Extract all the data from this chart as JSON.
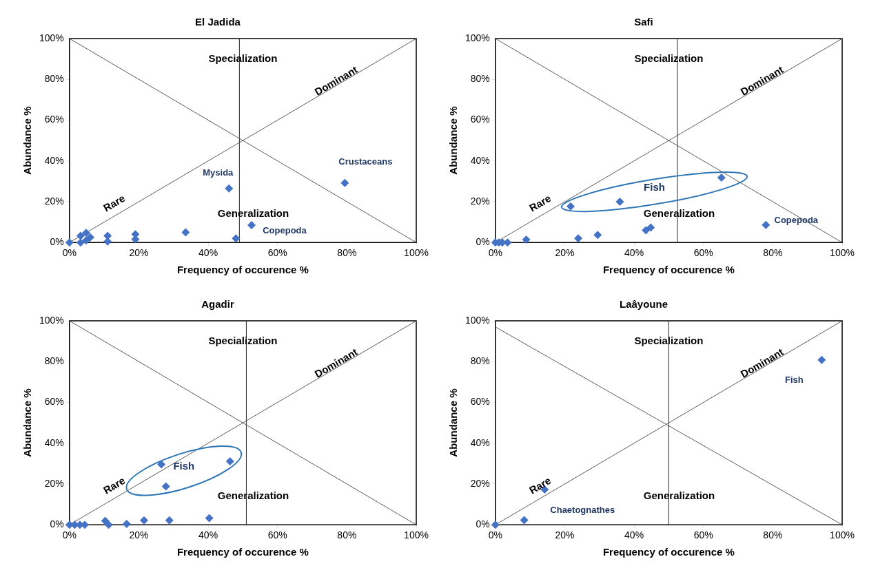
{
  "chart_data": [
    {
      "type": "scatter",
      "title": "El Jadida",
      "xlabel": "Frequency of occurence %",
      "ylabel": "Abundance %",
      "xlim": [
        0,
        100
      ],
      "ylim": [
        0,
        100
      ],
      "marker": "diamond",
      "xticks": [
        {
          "value": 0,
          "label": "0%"
        },
        {
          "value": 20,
          "label": "20%"
        },
        {
          "value": 40,
          "label": "40%"
        },
        {
          "value": 60,
          "label": "60%"
        },
        {
          "value": 80,
          "label": "80%"
        },
        {
          "value": 100,
          "label": "100%"
        }
      ],
      "yticks": [
        {
          "value": 0,
          "label": "0%"
        },
        {
          "value": 20,
          "label": "20%"
        },
        {
          "value": 40,
          "label": "40%"
        },
        {
          "value": 60,
          "label": "60%"
        },
        {
          "value": 80,
          "label": "80%"
        },
        {
          "value": 100,
          "label": "100%"
        }
      ],
      "grid": false,
      "legend": false,
      "series": [
        {
          "type": "scatter",
          "color": "#4472c4",
          "x": [
            0,
            3.2,
            3.2,
            4.8,
            4.8,
            6,
            11,
            11,
            19,
            19,
            33.5,
            48,
            52.5,
            46,
            79.4
          ],
          "values": [
            0,
            3.3,
            0,
            4.7,
            1,
            2.5,
            3.3,
            0.5,
            4,
            1.6,
            5,
            2,
            8.5,
            26.5,
            29.2
          ]
        },
        {
          "type": "line",
          "marker": "none",
          "color": "#595959",
          "x": [
            0,
            100
          ],
          "values": [
            100,
            0
          ]
        },
        {
          "type": "line",
          "marker": "none",
          "color": "#595959",
          "x": [
            0,
            100
          ],
          "values": [
            0,
            100
          ]
        }
      ],
      "ref_lines": [
        {
          "axis": "x",
          "value": 49,
          "color": "#262626"
        }
      ],
      "annotations": [
        "Specialization",
        "Dominant",
        "Rare",
        "Generalization",
        {
          "text": "Mysida",
          "x": 46,
          "y": 26.5
        },
        {
          "text": "Crustaceans",
          "x": 79.4,
          "y": 29.2
        },
        {
          "text": "Copepoda",
          "x": 52.5,
          "y": 8.5
        }
      ]
    },
    {
      "type": "scatter",
      "title": "Safi",
      "xlabel": "Frequency of occurence %",
      "ylabel": "Abundance %",
      "xlim": [
        0,
        100
      ],
      "ylim": [
        0,
        100
      ],
      "marker": "diamond",
      "xticks": [
        {
          "value": 0,
          "label": "0%"
        },
        {
          "value": 20,
          "label": "20%"
        },
        {
          "value": 40,
          "label": "40%"
        },
        {
          "value": 60,
          "label": "60%"
        },
        {
          "value": 80,
          "label": "80%"
        },
        {
          "value": 100,
          "label": "100%"
        }
      ],
      "yticks": [
        {
          "value": 0,
          "label": "0%"
        },
        {
          "value": 20,
          "label": "20%"
        },
        {
          "value": 40,
          "label": "40%"
        },
        {
          "value": 60,
          "label": "60%"
        },
        {
          "value": 80,
          "label": "80%"
        },
        {
          "value": 100,
          "label": "100%"
        }
      ],
      "grid": false,
      "legend": false,
      "series": [
        {
          "type": "scatter",
          "color": "#4472c4",
          "x": [
            0,
            1,
            2,
            3.5,
            8.9,
            23.9,
            29.5,
            21.7,
            35.9,
            43.4,
            44.8,
            65.2,
            78
          ],
          "values": [
            0,
            0,
            0,
            0,
            1.4,
            2,
            3.7,
            17.7,
            20,
            6,
            7.3,
            31.8,
            8.6
          ]
        },
        {
          "type": "line",
          "marker": "none",
          "color": "#595959",
          "x": [
            0,
            100
          ],
          "values": [
            100,
            0
          ]
        },
        {
          "type": "line",
          "marker": "none",
          "color": "#595959",
          "x": [
            0,
            100
          ],
          "values": [
            0,
            100
          ]
        }
      ],
      "ref_lines": [
        {
          "axis": "x",
          "value": 52.5,
          "color": "#262626"
        }
      ],
      "annotations": [
        "Specialization",
        "Dominant",
        "Rare",
        "Generalization",
        "Fish",
        {
          "text": "Copepoda",
          "x": 78,
          "y": 8.6
        }
      ]
    },
    {
      "type": "scatter",
      "title": "Agadir",
      "xlabel": "Frequency of occurence %",
      "ylabel": "Abundance %",
      "xlim": [
        0,
        100
      ],
      "ylim": [
        0,
        100
      ],
      "marker": "diamond",
      "xticks": [
        {
          "value": 0,
          "label": "0%"
        },
        {
          "value": 20,
          "label": "20%"
        },
        {
          "value": 40,
          "label": "40%"
        },
        {
          "value": 60,
          "label": "60%"
        },
        {
          "value": 80,
          "label": "80%"
        },
        {
          "value": 100,
          "label": "100%"
        }
      ],
      "yticks": [
        {
          "value": 0,
          "label": "0%"
        },
        {
          "value": 20,
          "label": "20%"
        },
        {
          "value": 40,
          "label": "40%"
        },
        {
          "value": 60,
          "label": "60%"
        },
        {
          "value": 80,
          "label": "80%"
        },
        {
          "value": 100,
          "label": "100%"
        }
      ],
      "grid": false,
      "legend": false,
      "series": [
        {
          "type": "scatter",
          "color": "#4472c4",
          "x": [
            0,
            1.5,
            3,
            4.4,
            10.3,
            11.3,
            16.5,
            21.5,
            28.8,
            40.3,
            26.5,
            27.8,
            46.3
          ],
          "values": [
            0,
            0,
            0,
            0,
            1.9,
            0,
            0.4,
            2.2,
            2.2,
            3.3,
            29.6,
            18.8,
            31.1
          ]
        },
        {
          "type": "line",
          "marker": "none",
          "color": "#595959",
          "x": [
            0,
            100
          ],
          "values": [
            100,
            0
          ]
        },
        {
          "type": "line",
          "marker": "none",
          "color": "#595959",
          "x": [
            0,
            100
          ],
          "values": [
            0,
            100
          ]
        }
      ],
      "ref_lines": [
        {
          "axis": "x",
          "value": 51,
          "color": "#262626"
        }
      ],
      "annotations": [
        "Specialization",
        "Dominant",
        "Rare",
        "Generalization",
        "Fish"
      ]
    },
    {
      "type": "scatter",
      "title": "Laâyoune",
      "xlabel": "Frequency of occurence %",
      "ylabel": "Abundance %",
      "xlim": [
        0,
        100
      ],
      "ylim": [
        0,
        100
      ],
      "marker": "diamond",
      "xticks": [
        {
          "value": 0,
          "label": "0%"
        },
        {
          "value": 20,
          "label": "20%"
        },
        {
          "value": 40,
          "label": "40%"
        },
        {
          "value": 60,
          "label": "60%"
        },
        {
          "value": 80,
          "label": "80%"
        },
        {
          "value": 100,
          "label": "100%"
        }
      ],
      "yticks": [
        {
          "value": 0,
          "label": "0%"
        },
        {
          "value": 20,
          "label": "20%"
        },
        {
          "value": 40,
          "label": "40%"
        },
        {
          "value": 60,
          "label": "60%"
        },
        {
          "value": 80,
          "label": "80%"
        },
        {
          "value": 100,
          "label": "100%"
        }
      ],
      "grid": false,
      "legend": false,
      "series": [
        {
          "type": "scatter",
          "color": "#4472c4",
          "x": [
            0,
            8.3,
            14.2,
            94.1
          ],
          "values": [
            0,
            2.3,
            17.3,
            80.8
          ]
        },
        {
          "type": "line",
          "marker": "none",
          "color": "#595959",
          "x": [
            0,
            100
          ],
          "values": [
            97,
            0
          ]
        },
        {
          "type": "line",
          "marker": "none",
          "color": "#595959",
          "x": [
            0,
            100
          ],
          "values": [
            0,
            100
          ]
        }
      ],
      "ref_lines": [
        {
          "axis": "x",
          "value": 50,
          "color": "#262626"
        }
      ],
      "annotations": [
        "Specialization",
        "Dominant",
        "Rare",
        "Generalization",
        {
          "text": "Fish",
          "x": 94.1,
          "y": 80.8
        },
        {
          "text": "Chaetognathes",
          "x": 14.2,
          "y": 17.3
        }
      ]
    }
  ]
}
